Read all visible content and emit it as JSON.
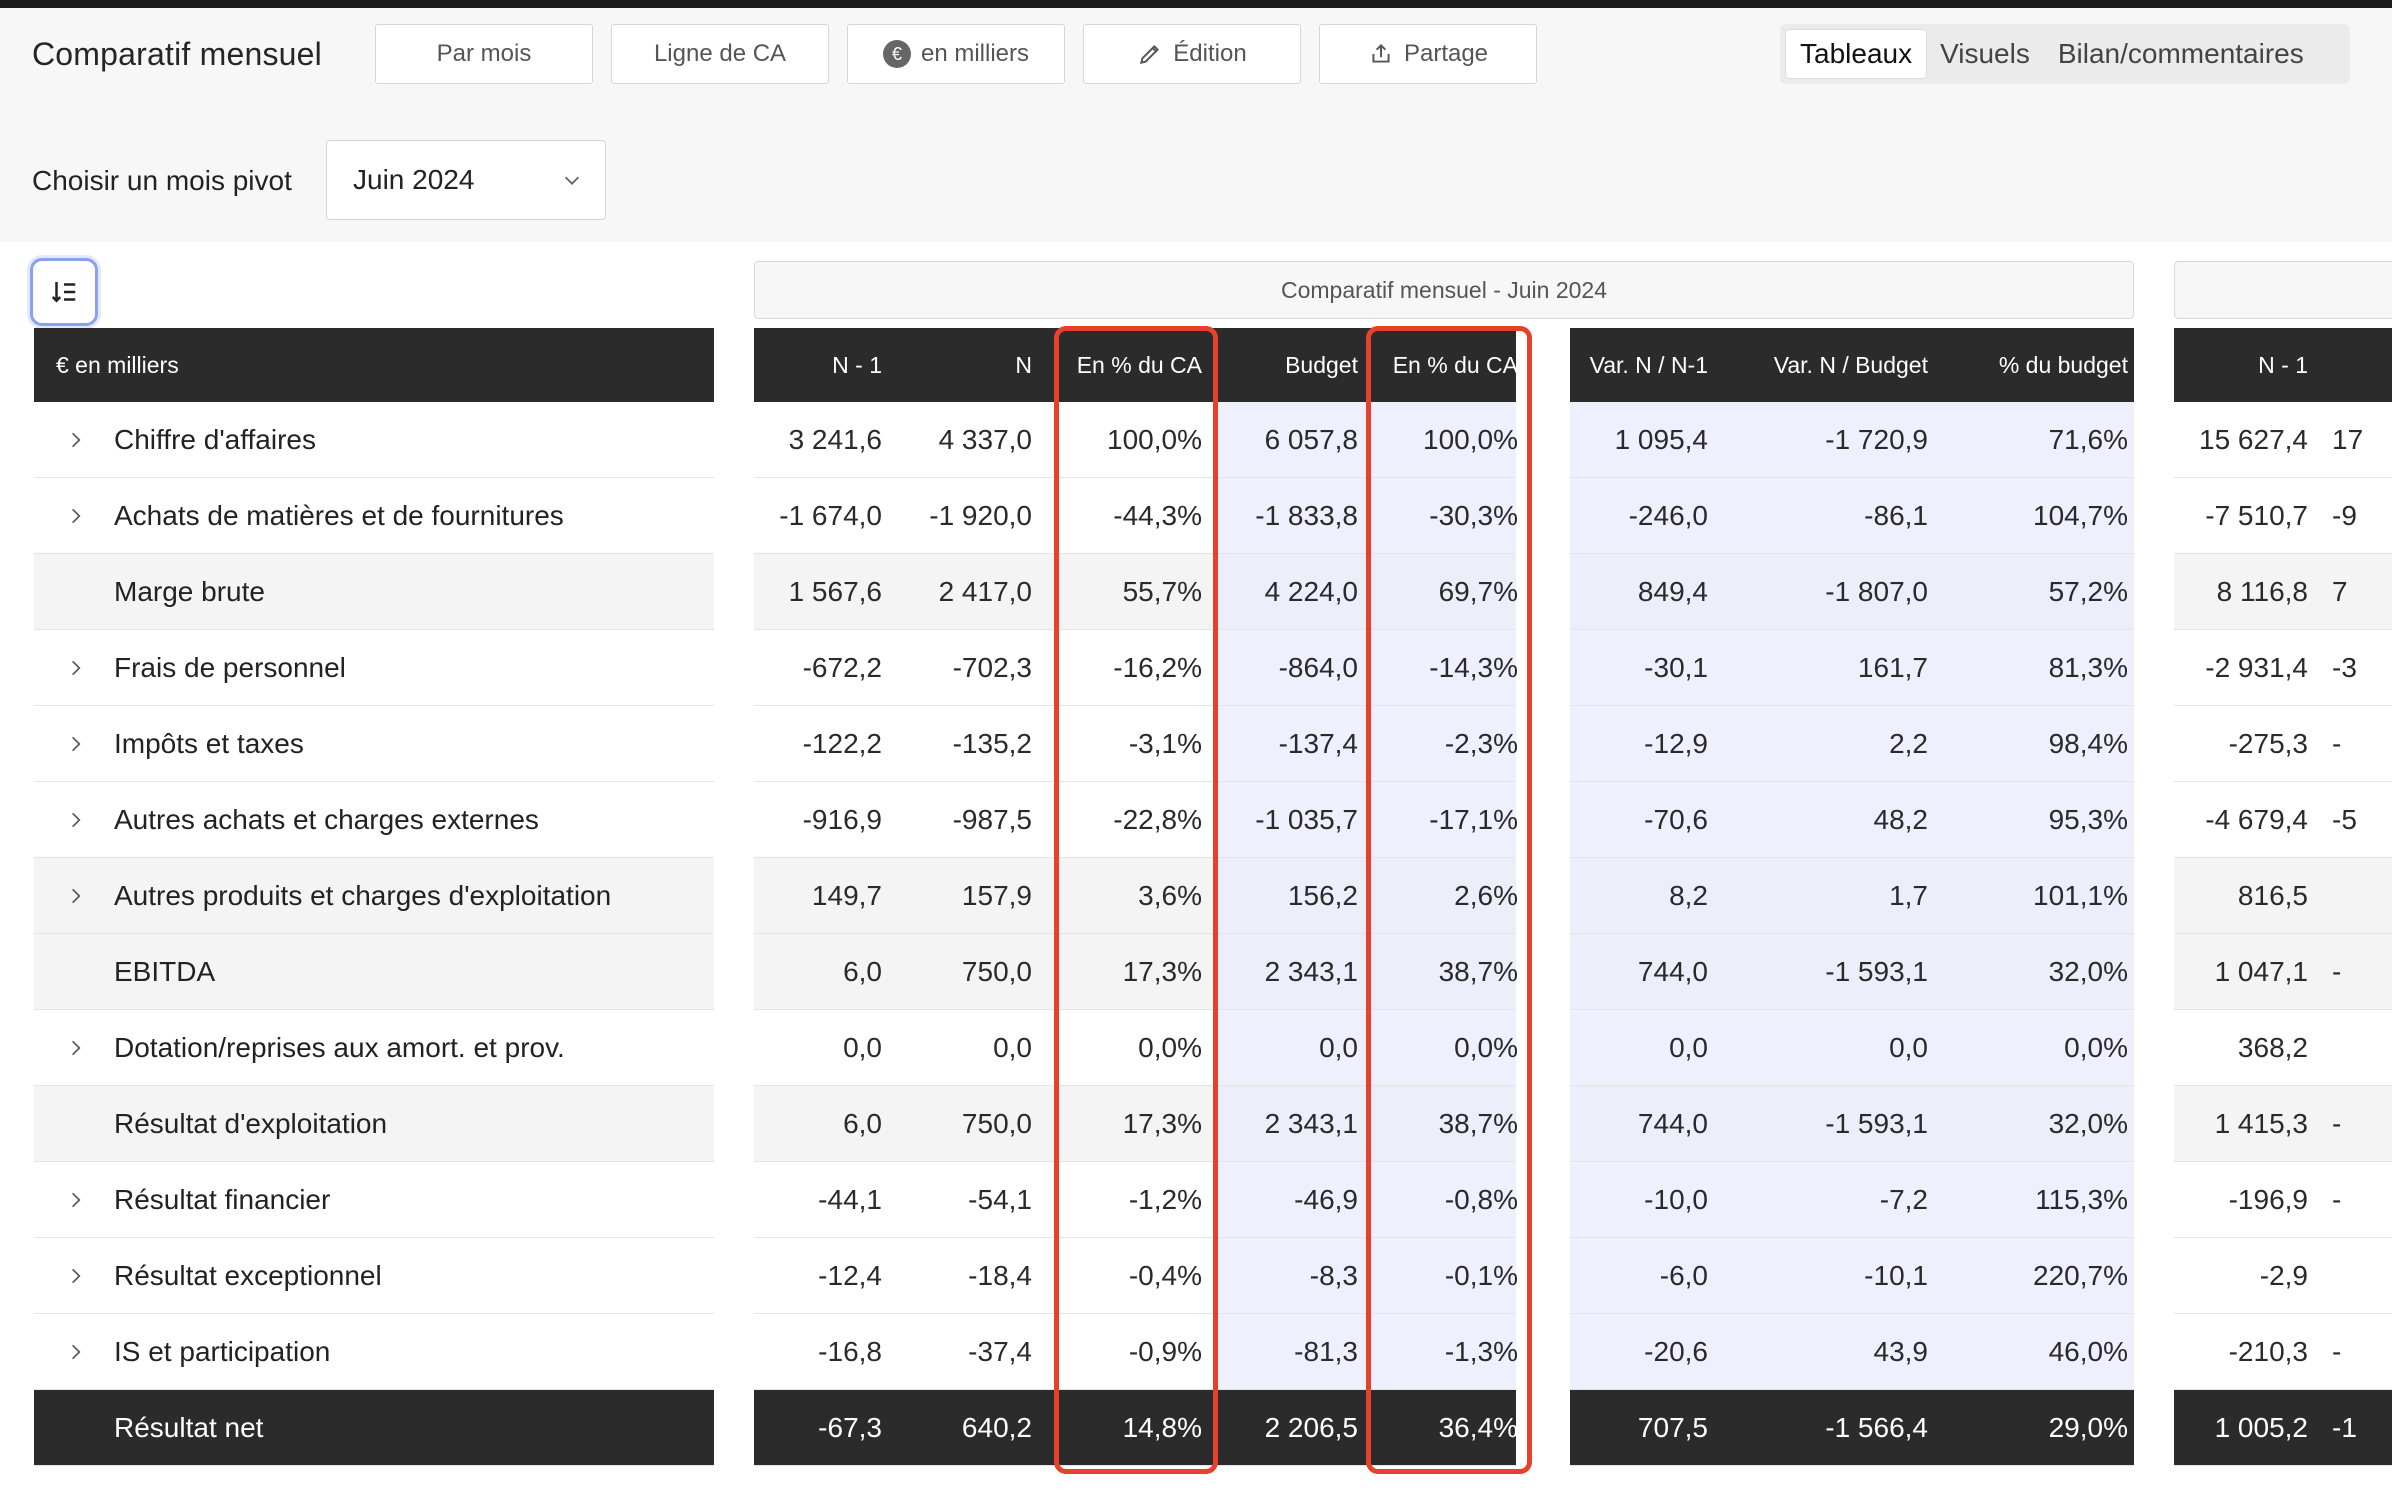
{
  "header": {
    "title": "Comparatif mensuel",
    "buttons": {
      "par_mois": "Par mois",
      "ligne_ca": "Ligne de CA",
      "en_milliers": "en milliers",
      "edition": "Édition",
      "partage": "Partage"
    },
    "view_tabs": [
      "Tableaux",
      "Visuels",
      "Bilan/commentaires"
    ]
  },
  "pivot": {
    "label": "Choisir un mois pivot",
    "value": "Juin 2024"
  },
  "table": {
    "group_title": "Comparatif mensuel - Juin 2024",
    "label_header": "€ en milliers",
    "columns": [
      "N - 1",
      "N",
      "En % du CA",
      "Budget",
      "En % du CA",
      "Var. N / N-1",
      "Var. N / Budget",
      "% du budget"
    ],
    "extra_column": "N - 1",
    "rows": [
      {
        "label": "Chiffre d'affaires",
        "values": [
          "3 241,6",
          "4 337,0",
          "100,0%",
          "6 057,8",
          "100,0%",
          "1 095,4",
          "-1 720,9",
          "71,6%"
        ],
        "extra": [
          "15 627,4",
          "17"
        ]
      },
      {
        "label": "Achats de matières et de fournitures",
        "values": [
          "-1 674,0",
          "-1 920,0",
          "-44,3%",
          "-1 833,8",
          "-30,3%",
          "-246,0",
          "-86,1",
          "104,7%"
        ],
        "extra": [
          "-7 510,7",
          "-9"
        ]
      },
      {
        "label": "Marge brute",
        "values": [
          "1 567,6",
          "2 417,0",
          "55,7%",
          "4 224,0",
          "69,7%",
          "849,4",
          "-1 807,0",
          "57,2%"
        ],
        "extra": [
          "8 116,8",
          "7"
        ]
      },
      {
        "label": "Frais de personnel",
        "values": [
          "-672,2",
          "-702,3",
          "-16,2%",
          "-864,0",
          "-14,3%",
          "-30,1",
          "161,7",
          "81,3%"
        ],
        "extra": [
          "-2 931,4",
          "-3"
        ]
      },
      {
        "label": "Impôts et taxes",
        "values": [
          "-122,2",
          "-135,2",
          "-3,1%",
          "-137,4",
          "-2,3%",
          "-12,9",
          "2,2",
          "98,4%"
        ],
        "extra": [
          "-275,3",
          "-"
        ]
      },
      {
        "label": "Autres achats et charges externes",
        "values": [
          "-916,9",
          "-987,5",
          "-22,8%",
          "-1 035,7",
          "-17,1%",
          "-70,6",
          "48,2",
          "95,3%"
        ],
        "extra": [
          "-4 679,4",
          "-5"
        ]
      },
      {
        "label": "Autres produits et charges d'exploitation",
        "values": [
          "149,7",
          "157,9",
          "3,6%",
          "156,2",
          "2,6%",
          "8,2",
          "1,7",
          "101,1%"
        ],
        "extra": [
          "816,5",
          ""
        ]
      },
      {
        "label": "EBITDA",
        "values": [
          "6,0",
          "750,0",
          "17,3%",
          "2 343,1",
          "38,7%",
          "744,0",
          "-1 593,1",
          "32,0%"
        ],
        "extra": [
          "1 047,1",
          "-"
        ]
      },
      {
        "label": "Dotation/reprises aux amort. et prov.",
        "values": [
          "0,0",
          "0,0",
          "0,0%",
          "0,0",
          "0,0%",
          "0,0",
          "0,0",
          "0,0%"
        ],
        "extra": [
          "368,2",
          ""
        ]
      },
      {
        "label": "Résultat d'exploitation",
        "values": [
          "6,0",
          "750,0",
          "17,3%",
          "2 343,1",
          "38,7%",
          "744,0",
          "-1 593,1",
          "32,0%"
        ],
        "extra": [
          "1 415,3",
          "-"
        ]
      },
      {
        "label": "Résultat financier",
        "values": [
          "-44,1",
          "-54,1",
          "-1,2%",
          "-46,9",
          "-0,8%",
          "-10,0",
          "-7,2",
          "115,3%"
        ],
        "extra": [
          "-196,9",
          "-"
        ]
      },
      {
        "label": "Résultat exceptionnel",
        "values": [
          "-12,4",
          "-18,4",
          "-0,4%",
          "-8,3",
          "-0,1%",
          "-6,0",
          "-10,1",
          "220,7%"
        ],
        "extra": [
          "-2,9",
          ""
        ]
      },
      {
        "label": "IS et participation",
        "values": [
          "-16,8",
          "-37,4",
          "-0,9%",
          "-81,3",
          "-1,3%",
          "-20,6",
          "43,9",
          "46,0%"
        ],
        "extra": [
          "-210,3",
          "-"
        ]
      },
      {
        "label": "Résultat net",
        "values": [
          "-67,3",
          "640,2",
          "14,8%",
          "2 206,5",
          "36,4%",
          "707,5",
          "-1 566,4",
          "29,0%"
        ],
        "extra": [
          "1 005,2",
          "-1"
        ]
      }
    ]
  },
  "colors": {
    "header_bg": "#2b2b2b",
    "budget_tint": "#eef0fd",
    "subtotal_bg": "#f4f4f4",
    "highlight_border": "#e8412b"
  }
}
